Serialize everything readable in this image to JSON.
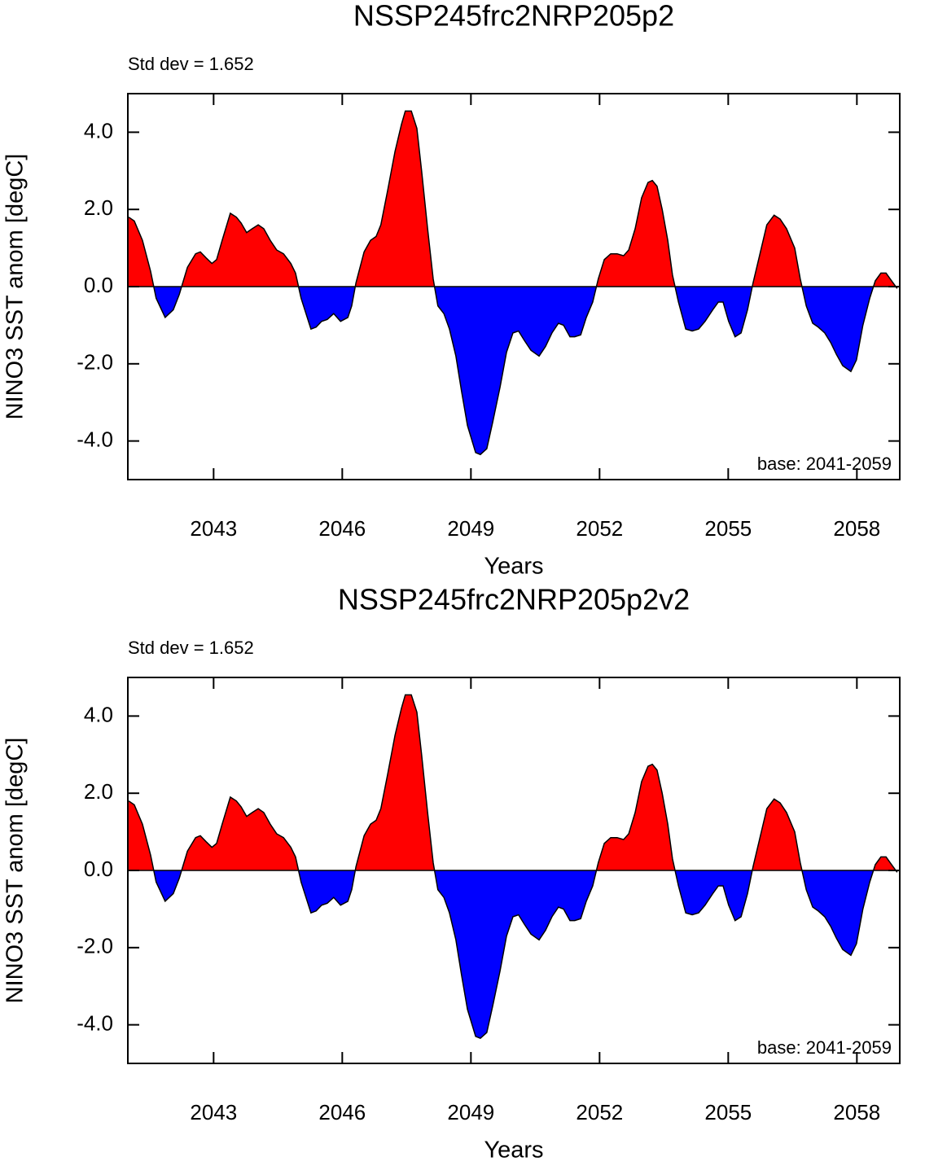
{
  "chart_data": [
    {
      "type": "area",
      "title": "NSSP245frc2NRP205p2",
      "x_label": "Years",
      "y_label": "NINO3 SST anom [degC]",
      "annotations": [
        "Std dev = 1.652",
        "base: 2041-2059"
      ],
      "xlim": [
        2041,
        2059
      ],
      "xticks": [
        2043,
        2046,
        2049,
        2052,
        2055,
        2058
      ],
      "ylim": [
        -5,
        5
      ],
      "yticks": [
        {
          "value": -4,
          "label": "-4.0"
        },
        {
          "value": -2,
          "label": "-2.0"
        },
        {
          "value": 0,
          "label": "0.0"
        },
        {
          "value": 2,
          "label": "2.0"
        },
        {
          "value": 4,
          "label": "4.0"
        }
      ],
      "above_color": "#ff0000",
      "below_color": "#0000ff",
      "x": [
        2041.02,
        2041.15,
        2041.34,
        2041.53,
        2041.66,
        2041.87,
        2042.06,
        2042.2,
        2042.39,
        2042.58,
        2042.69,
        2042.82,
        2042.96,
        2043.07,
        2043.2,
        2043.39,
        2043.53,
        2043.64,
        2043.77,
        2043.9,
        2044.04,
        2044.17,
        2044.32,
        2044.47,
        2044.63,
        2044.8,
        2044.91,
        2045.04,
        2045.27,
        2045.39,
        2045.52,
        2045.65,
        2045.8,
        2045.96,
        2046.13,
        2046.22,
        2046.32,
        2046.51,
        2046.66,
        2046.79,
        2046.9,
        2047.06,
        2047.23,
        2047.38,
        2047.47,
        2047.61,
        2047.74,
        2047.85,
        2047.99,
        2048.12,
        2048.23,
        2048.37,
        2048.5,
        2048.65,
        2048.78,
        2048.92,
        2049.11,
        2049.22,
        2049.37,
        2049.51,
        2049.68,
        2049.83,
        2049.98,
        2050.11,
        2050.25,
        2050.4,
        2050.59,
        2050.74,
        2050.89,
        2051.04,
        2051.16,
        2051.31,
        2051.42,
        2051.56,
        2051.69,
        2051.84,
        2051.97,
        2052.11,
        2052.26,
        2052.41,
        2052.56,
        2052.68,
        2052.83,
        2052.98,
        2053.13,
        2053.23,
        2053.34,
        2053.46,
        2053.59,
        2053.7,
        2053.84,
        2054.01,
        2054.16,
        2054.31,
        2054.46,
        2054.64,
        2054.77,
        2054.88,
        2055.01,
        2055.16,
        2055.3,
        2055.45,
        2055.58,
        2055.73,
        2055.9,
        2056.07,
        2056.21,
        2056.36,
        2056.55,
        2056.68,
        2056.82,
        2056.97,
        2057.1,
        2057.25,
        2057.39,
        2057.52,
        2057.67,
        2057.86,
        2057.99,
        2058.14,
        2058.3,
        2058.43,
        2058.56,
        2058.68,
        2058.81,
        2058.94
      ],
      "series": [
        {
          "values": [
            1.8,
            1.7,
            1.2,
            0.4,
            -0.3,
            -0.8,
            -0.6,
            -0.2,
            0.5,
            0.85,
            0.9,
            0.75,
            0.6,
            0.7,
            1.2,
            1.9,
            1.8,
            1.65,
            1.4,
            1.5,
            1.6,
            1.5,
            1.2,
            0.95,
            0.85,
            0.6,
            0.35,
            -0.3,
            -1.1,
            -1.05,
            -0.9,
            -0.85,
            -0.7,
            -0.9,
            -0.8,
            -0.5,
            0.1,
            0.9,
            1.2,
            1.3,
            1.6,
            2.5,
            3.5,
            4.2,
            4.55,
            4.55,
            4.1,
            3.0,
            1.5,
            0.2,
            -0.5,
            -0.7,
            -1.1,
            -1.8,
            -2.7,
            -3.6,
            -4.3,
            -4.35,
            -4.2,
            -3.5,
            -2.6,
            -1.7,
            -1.2,
            -1.15,
            -1.4,
            -1.65,
            -1.8,
            -1.55,
            -1.2,
            -0.95,
            -1.0,
            -1.3,
            -1.3,
            -1.25,
            -0.8,
            -0.4,
            0.2,
            0.7,
            0.85,
            0.85,
            0.8,
            0.95,
            1.5,
            2.3,
            2.7,
            2.75,
            2.6,
            2.0,
            1.2,
            0.3,
            -0.4,
            -1.1,
            -1.15,
            -1.1,
            -0.9,
            -0.6,
            -0.4,
            -0.4,
            -0.9,
            -1.3,
            -1.2,
            -0.6,
            0.1,
            0.8,
            1.6,
            1.85,
            1.75,
            1.5,
            1.0,
            0.2,
            -0.5,
            -0.95,
            -1.05,
            -1.2,
            -1.45,
            -1.75,
            -2.05,
            -2.2,
            -1.9,
            -1.0,
            -0.3,
            0.15,
            0.35,
            0.35,
            0.15,
            -0.05
          ]
        }
      ]
    },
    {
      "type": "area",
      "title": "NSSP245frc2NRP205p2v2",
      "x_label": "Years",
      "y_label": "NINO3 SST anom [degC]",
      "annotations": [
        "Std dev = 1.652",
        "base: 2041-2059"
      ],
      "xlim": [
        2041,
        2059
      ],
      "xticks": [
        2043,
        2046,
        2049,
        2052,
        2055,
        2058
      ],
      "ylim": [
        -5,
        5
      ],
      "yticks": [
        {
          "value": -4,
          "label": "-4.0"
        },
        {
          "value": -2,
          "label": "-2.0"
        },
        {
          "value": 0,
          "label": "0.0"
        },
        {
          "value": 2,
          "label": "2.0"
        },
        {
          "value": 4,
          "label": "4.0"
        }
      ],
      "above_color": "#ff0000",
      "below_color": "#0000ff",
      "x": [
        2041.02,
        2041.15,
        2041.34,
        2041.53,
        2041.66,
        2041.87,
        2042.06,
        2042.2,
        2042.39,
        2042.58,
        2042.69,
        2042.82,
        2042.96,
        2043.07,
        2043.2,
        2043.39,
        2043.53,
        2043.64,
        2043.77,
        2043.9,
        2044.04,
        2044.17,
        2044.32,
        2044.47,
        2044.63,
        2044.8,
        2044.91,
        2045.04,
        2045.27,
        2045.39,
        2045.52,
        2045.65,
        2045.8,
        2045.96,
        2046.13,
        2046.22,
        2046.32,
        2046.51,
        2046.66,
        2046.79,
        2046.9,
        2047.06,
        2047.23,
        2047.38,
        2047.47,
        2047.61,
        2047.74,
        2047.85,
        2047.99,
        2048.12,
        2048.23,
        2048.37,
        2048.5,
        2048.65,
        2048.78,
        2048.92,
        2049.11,
        2049.22,
        2049.37,
        2049.51,
        2049.68,
        2049.83,
        2049.98,
        2050.11,
        2050.25,
        2050.4,
        2050.59,
        2050.74,
        2050.89,
        2051.04,
        2051.16,
        2051.31,
        2051.42,
        2051.56,
        2051.69,
        2051.84,
        2051.97,
        2052.11,
        2052.26,
        2052.41,
        2052.56,
        2052.68,
        2052.83,
        2052.98,
        2053.13,
        2053.23,
        2053.34,
        2053.46,
        2053.59,
        2053.7,
        2053.84,
        2054.01,
        2054.16,
        2054.31,
        2054.46,
        2054.64,
        2054.77,
        2054.88,
        2055.01,
        2055.16,
        2055.3,
        2055.45,
        2055.58,
        2055.73,
        2055.9,
        2056.07,
        2056.21,
        2056.36,
        2056.55,
        2056.68,
        2056.82,
        2056.97,
        2057.1,
        2057.25,
        2057.39,
        2057.52,
        2057.67,
        2057.86,
        2057.99,
        2058.14,
        2058.3,
        2058.43,
        2058.56,
        2058.68,
        2058.81,
        2058.94
      ],
      "series": [
        {
          "values": [
            1.8,
            1.7,
            1.2,
            0.4,
            -0.3,
            -0.8,
            -0.6,
            -0.2,
            0.5,
            0.85,
            0.9,
            0.75,
            0.6,
            0.7,
            1.2,
            1.9,
            1.8,
            1.65,
            1.4,
            1.5,
            1.6,
            1.5,
            1.2,
            0.95,
            0.85,
            0.6,
            0.35,
            -0.3,
            -1.1,
            -1.05,
            -0.9,
            -0.85,
            -0.7,
            -0.9,
            -0.8,
            -0.5,
            0.1,
            0.9,
            1.2,
            1.3,
            1.6,
            2.5,
            3.5,
            4.2,
            4.55,
            4.55,
            4.1,
            3.0,
            1.5,
            0.2,
            -0.5,
            -0.7,
            -1.1,
            -1.8,
            -2.7,
            -3.6,
            -4.3,
            -4.35,
            -4.2,
            -3.5,
            -2.6,
            -1.7,
            -1.2,
            -1.15,
            -1.4,
            -1.65,
            -1.8,
            -1.55,
            -1.2,
            -0.95,
            -1.0,
            -1.3,
            -1.3,
            -1.25,
            -0.8,
            -0.4,
            0.2,
            0.7,
            0.85,
            0.85,
            0.8,
            0.95,
            1.5,
            2.3,
            2.7,
            2.75,
            2.6,
            2.0,
            1.2,
            0.3,
            -0.4,
            -1.1,
            -1.15,
            -1.1,
            -0.9,
            -0.6,
            -0.4,
            -0.4,
            -0.9,
            -1.3,
            -1.2,
            -0.6,
            0.1,
            0.8,
            1.6,
            1.85,
            1.75,
            1.5,
            1.0,
            0.2,
            -0.5,
            -0.95,
            -1.05,
            -1.2,
            -1.45,
            -1.75,
            -2.05,
            -2.2,
            -1.9,
            -1.0,
            -0.3,
            0.15,
            0.35,
            0.35,
            0.15,
            -0.05
          ]
        }
      ]
    }
  ]
}
